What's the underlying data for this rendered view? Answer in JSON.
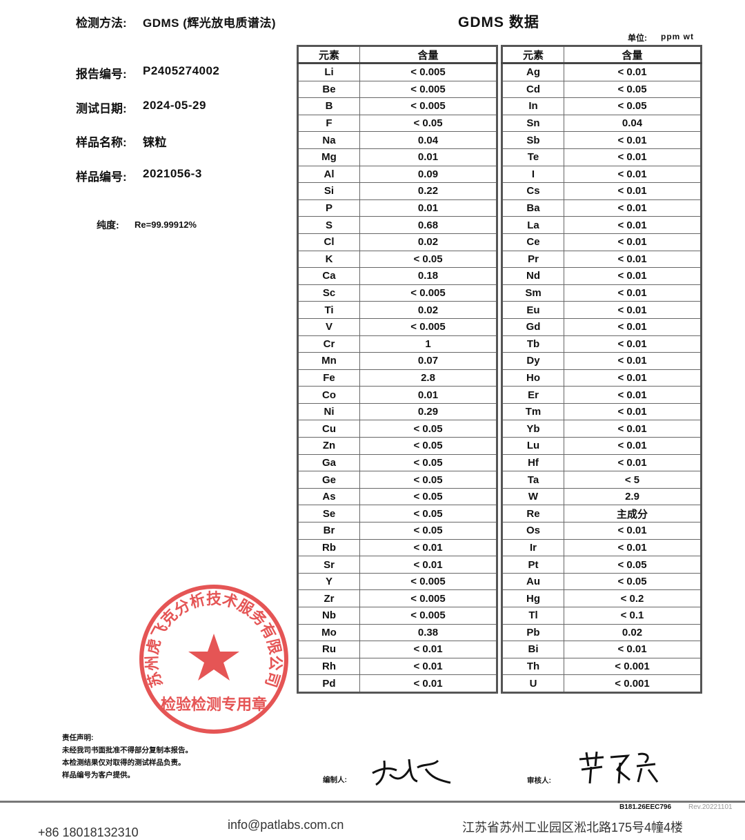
{
  "header": {
    "method_label": "检测方法:",
    "method_value": "GDMS (辉光放电质谱法)",
    "title": "GDMS 数据",
    "unit_label": "单位:",
    "unit_value": "ppm wt"
  },
  "info": [
    {
      "label": "报告编号:",
      "value": "P2405274002"
    },
    {
      "label": "测试日期:",
      "value": "2024-05-29"
    },
    {
      "label": "样品名称:",
      "value": "铼粒"
    },
    {
      "label": "样品编号:",
      "value": "2021056-3"
    }
  ],
  "purity": {
    "label": "纯度:",
    "value": "Re=99.99912%"
  },
  "table": {
    "col_element": "元素",
    "col_content": "含量",
    "left": [
      [
        "Li",
        "< 0.005"
      ],
      [
        "Be",
        "< 0.005"
      ],
      [
        "B",
        "< 0.005"
      ],
      [
        "F",
        "< 0.05"
      ],
      [
        "Na",
        "0.04"
      ],
      [
        "Mg",
        "0.01"
      ],
      [
        "Al",
        "0.09"
      ],
      [
        "Si",
        "0.22"
      ],
      [
        "P",
        "0.01"
      ],
      [
        "S",
        "0.68"
      ],
      [
        "Cl",
        "0.02"
      ],
      [
        "K",
        "< 0.05"
      ],
      [
        "Ca",
        "0.18"
      ],
      [
        "Sc",
        "< 0.005"
      ],
      [
        "Ti",
        "0.02"
      ],
      [
        "V",
        "< 0.005"
      ],
      [
        "Cr",
        "1"
      ],
      [
        "Mn",
        "0.07"
      ],
      [
        "Fe",
        "2.8"
      ],
      [
        "Co",
        "0.01"
      ],
      [
        "Ni",
        "0.29"
      ],
      [
        "Cu",
        "< 0.05"
      ],
      [
        "Zn",
        "< 0.05"
      ],
      [
        "Ga",
        "< 0.05"
      ],
      [
        "Ge",
        "< 0.05"
      ],
      [
        "As",
        "< 0.05"
      ],
      [
        "Se",
        "< 0.05"
      ],
      [
        "Br",
        "< 0.05"
      ],
      [
        "Rb",
        "< 0.01"
      ],
      [
        "Sr",
        "< 0.01"
      ],
      [
        "Y",
        "< 0.005"
      ],
      [
        "Zr",
        "< 0.005"
      ],
      [
        "Nb",
        "< 0.005"
      ],
      [
        "Mo",
        "0.38"
      ],
      [
        "Ru",
        "< 0.01"
      ],
      [
        "Rh",
        "< 0.01"
      ],
      [
        "Pd",
        "< 0.01"
      ]
    ],
    "right": [
      [
        "Ag",
        "< 0.01"
      ],
      [
        "Cd",
        "< 0.05"
      ],
      [
        "In",
        "< 0.05"
      ],
      [
        "Sn",
        "0.04"
      ],
      [
        "Sb",
        "< 0.01"
      ],
      [
        "Te",
        "< 0.01"
      ],
      [
        "I",
        "< 0.01"
      ],
      [
        "Cs",
        "< 0.01"
      ],
      [
        "Ba",
        "< 0.01"
      ],
      [
        "La",
        "< 0.01"
      ],
      [
        "Ce",
        "< 0.01"
      ],
      [
        "Pr",
        "< 0.01"
      ],
      [
        "Nd",
        "< 0.01"
      ],
      [
        "Sm",
        "< 0.01"
      ],
      [
        "Eu",
        "< 0.01"
      ],
      [
        "Gd",
        "< 0.01"
      ],
      [
        "Tb",
        "< 0.01"
      ],
      [
        "Dy",
        "< 0.01"
      ],
      [
        "Ho",
        "< 0.01"
      ],
      [
        "Er",
        "< 0.01"
      ],
      [
        "Tm",
        "< 0.01"
      ],
      [
        "Yb",
        "< 0.01"
      ],
      [
        "Lu",
        "< 0.01"
      ],
      [
        "Hf",
        "< 0.01"
      ],
      [
        "Ta",
        "< 5"
      ],
      [
        "W",
        "2.9"
      ],
      [
        "Re",
        "主成分"
      ],
      [
        "Os",
        "< 0.01"
      ],
      [
        "Ir",
        "< 0.01"
      ],
      [
        "Pt",
        "< 0.05"
      ],
      [
        "Au",
        "< 0.05"
      ],
      [
        "Hg",
        "< 0.2"
      ],
      [
        "Tl",
        "< 0.1"
      ],
      [
        "Pb",
        "0.02"
      ],
      [
        "Bi",
        "< 0.01"
      ],
      [
        "Th",
        "< 0.001"
      ],
      [
        "U",
        "< 0.001"
      ]
    ]
  },
  "seal": {
    "outer_text": "苏州虎飞克分析技术服务有限公司",
    "inner_text": "检验检测专用章",
    "color": "#e03030"
  },
  "disclaimer": {
    "title": "责任声明:",
    "lines": [
      "未经我司书面批准不得部分复制本报告。",
      "本检测结果仅对取得的测试样品负责。",
      "样品编号为客户提供。"
    ]
  },
  "signatures": {
    "editor_label": "编制人:",
    "reviewer_label": "审核人:"
  },
  "footer": {
    "code": "B181.26EEC796",
    "rev": "Rev.20221101",
    "phone": "+86 18018132310",
    "email": "info@patlabs.com.cn",
    "address": "江苏省苏州工业园区淞北路175号4幢4楼"
  }
}
